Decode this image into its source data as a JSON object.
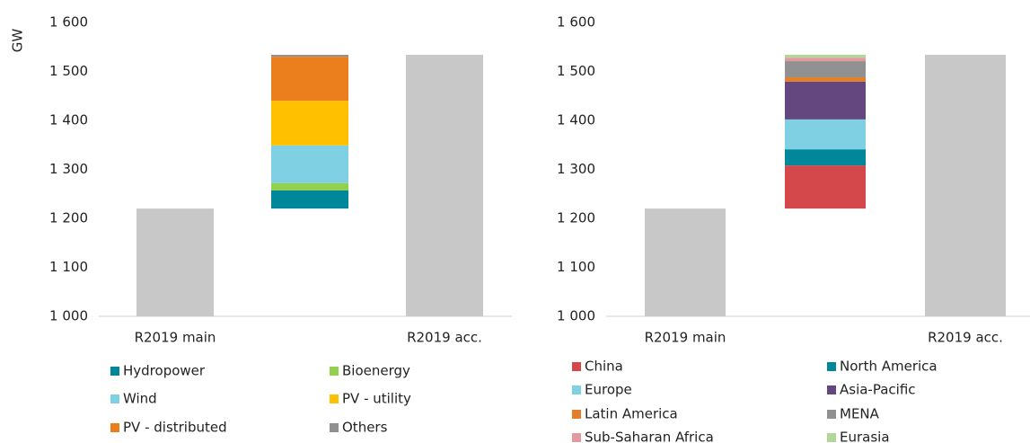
{
  "chart_data": [
    {
      "type": "waterfall",
      "y_label": "GW",
      "categories": [
        "R2019 main",
        null,
        "R2019 acc."
      ],
      "values": [
        1220,
        null,
        1534
      ],
      "color": "#c8c8c8",
      "series": [
        {
          "name": "Hydropower",
          "color": "#00889a",
          "values": [
            null,
            37,
            null
          ]
        },
        {
          "name": "Bioenergy",
          "color": "#92d050",
          "values": [
            null,
            15,
            null
          ]
        },
        {
          "name": "Wind",
          "color": "#7fd0e2",
          "values": [
            null,
            77,
            null
          ]
        },
        {
          "name": "PV - utility",
          "color": "#ffc000",
          "values": [
            null,
            91,
            null
          ]
        },
        {
          "name": "PV - distributed",
          "color": "#eb7f1e",
          "values": [
            null,
            90,
            null
          ]
        },
        {
          "name": "Others",
          "color": "#919191",
          "values": [
            null,
            4,
            null
          ]
        }
      ],
      "ylim": [
        1000,
        1600
      ],
      "yticks": [
        {
          "value": 1000,
          "label": "1 000"
        },
        {
          "value": 1100,
          "label": "1 100"
        },
        {
          "value": 1200,
          "label": "1 200"
        },
        {
          "value": 1300,
          "label": "1 300"
        },
        {
          "value": 1400,
          "label": "1 400"
        },
        {
          "value": 1500,
          "label": "1 500"
        },
        {
          "value": 1600,
          "label": "1 600"
        }
      ],
      "grid": false,
      "legend": "bottom"
    },
    {
      "type": "waterfall",
      "categories": [
        "R2019 main",
        null,
        "R2019 acc."
      ],
      "values": [
        1220,
        null,
        1534
      ],
      "color": "#c8c8c8",
      "series": [
        {
          "name": "China",
          "color": "#d4474b",
          "values": [
            null,
            88,
            null
          ]
        },
        {
          "name": "North America",
          "color": "#00889a",
          "values": [
            null,
            33,
            null
          ]
        },
        {
          "name": "Europe",
          "color": "#7fd0e2",
          "values": [
            null,
            61,
            null
          ]
        },
        {
          "name": "Asia-Pacific",
          "color": "#654780",
          "values": [
            null,
            77,
            null
          ]
        },
        {
          "name": "Latin America",
          "color": "#e37f2a",
          "values": [
            null,
            9,
            null
          ]
        },
        {
          "name": "MENA",
          "color": "#919191",
          "values": [
            null,
            33,
            null
          ]
        },
        {
          "name": "Sub-Saharan Africa",
          "color": "#e29aa0",
          "values": [
            null,
            7,
            null
          ]
        },
        {
          "name": "Eurasia",
          "color": "#b0d69a",
          "values": [
            null,
            6,
            null
          ]
        }
      ],
      "ylim": [
        1000,
        1600
      ],
      "yticks": [
        {
          "value": 1000,
          "label": "1 000"
        },
        {
          "value": 1100,
          "label": "1 100"
        },
        {
          "value": 1200,
          "label": "1 200"
        },
        {
          "value": 1300,
          "label": "1 300"
        },
        {
          "value": 1400,
          "label": "1 400"
        },
        {
          "value": 1500,
          "label": "1 500"
        },
        {
          "value": 1600,
          "label": "1 600"
        }
      ],
      "grid": false,
      "legend": "bottom"
    }
  ]
}
